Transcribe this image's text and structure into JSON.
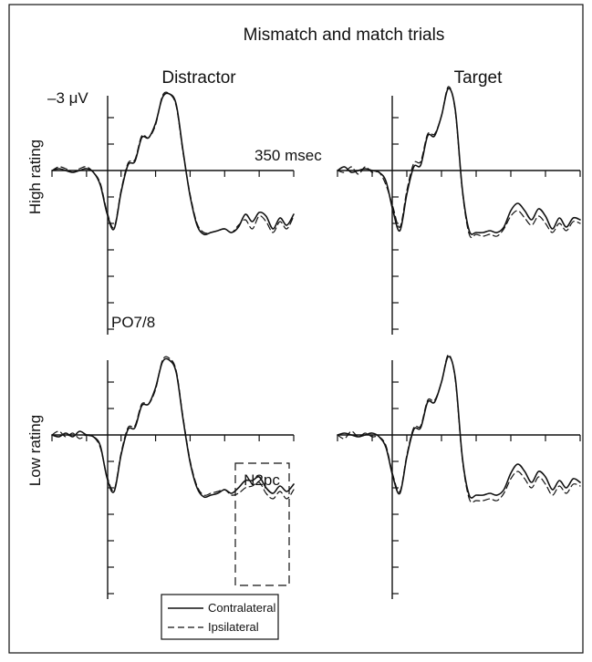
{
  "chart_data": {
    "type": "line",
    "title": "Mismatch and match trials",
    "columns": [
      "Distractor",
      "Target"
    ],
    "rows": [
      "High rating",
      "Low rating"
    ],
    "y_scale_label": "–3 μV",
    "y_axis_note": "negative up",
    "time_marker_label": "350 msec",
    "electrode_label": "PO7/8",
    "annotation": "N2pc",
    "legend": [
      "Contralateral",
      "Ipsilateral"
    ],
    "x_unit": "msec",
    "x": [
      -100,
      -80,
      -60,
      -40,
      -20,
      0,
      20,
      40,
      60,
      80,
      100,
      120,
      140,
      160,
      180,
      200,
      220,
      240,
      260,
      280,
      300,
      320,
      340,
      360,
      380,
      400,
      420,
      440,
      460,
      480,
      500,
      520,
      540,
      560,
      580,
      600
    ],
    "y_unit": "μV",
    "panels": [
      {
        "row": "High rating",
        "column": "Distractor",
        "series": [
          {
            "name": "Contralateral",
            "values": [
              0,
              -0.1,
              0,
              0.1,
              0,
              -0.1,
              0.1,
              0.8,
              2.4,
              3.2,
              1.2,
              -0.3,
              -0.5,
              -1.8,
              -1.8,
              -2.6,
              -4.0,
              -4.2,
              -3.6,
              -1.0,
              1.4,
              3.0,
              3.5,
              3.4,
              3.3,
              3.2,
              3.4,
              3.1,
              2.4,
              2.8,
              2.3,
              2.5,
              3.2,
              2.6,
              3.0,
              2.4
            ]
          },
          {
            "name": "Ipsilateral",
            "values": [
              0,
              -0.2,
              -0.1,
              0.1,
              -0.1,
              -0.2,
              0.1,
              0.7,
              2.3,
              3.1,
              1.1,
              -0.4,
              -0.6,
              -1.9,
              -1.8,
              -2.5,
              -4.1,
              -4.2,
              -3.5,
              -0.9,
              1.3,
              2.9,
              3.4,
              3.4,
              3.3,
              3.2,
              3.4,
              3.0,
              2.7,
              3.2,
              2.5,
              2.8,
              3.4,
              2.8,
              3.2,
              2.5
            ]
          }
        ]
      },
      {
        "row": "High rating",
        "column": "Target",
        "series": [
          {
            "name": "Contralateral",
            "values": [
              0,
              -0.2,
              0.1,
              0,
              -0.1,
              0,
              0.1,
              0.6,
              2.2,
              3.3,
              1.3,
              -0.2,
              -0.3,
              -1.9,
              -1.9,
              -3.0,
              -4.5,
              -3.3,
              1.0,
              3.3,
              3.4,
              3.4,
              3.3,
              3.4,
              3.1,
              2.2,
              1.8,
              2.2,
              2.7,
              2.1,
              2.5,
              3.2,
              2.6,
              3.1,
              2.6,
              2.7
            ]
          },
          {
            "name": "Ipsilateral",
            "values": [
              0,
              0.1,
              -0.2,
              0.2,
              -0.2,
              0.1,
              0.1,
              0.8,
              2.0,
              3.1,
              1.1,
              -0.4,
              -0.5,
              -2.0,
              -2.0,
              -3.0,
              -4.6,
              -3.2,
              1.1,
              3.5,
              3.5,
              3.6,
              3.5,
              3.6,
              3.2,
              2.5,
              2.2,
              2.6,
              3.0,
              2.5,
              2.9,
              3.4,
              2.9,
              3.3,
              2.8,
              2.9
            ]
          }
        ]
      },
      {
        "row": "Low rating",
        "column": "Distractor",
        "series": [
          {
            "name": "Contralateral",
            "values": [
              0,
              0.1,
              -0.1,
              0.1,
              -0.2,
              0,
              0.1,
              0.6,
              2.4,
              3.1,
              1.1,
              -0.3,
              -0.4,
              -1.6,
              -1.7,
              -2.6,
              -4.0,
              -4.1,
              -3.4,
              -0.8,
              1.5,
              2.9,
              3.4,
              3.3,
              3.2,
              3.0,
              3.2,
              2.9,
              2.5,
              2.5,
              2.3,
              2.9,
              3.2,
              2.8,
              3.1,
              2.7
            ]
          },
          {
            "name": "Ipsilateral",
            "values": [
              0,
              -0.2,
              0.1,
              -0.1,
              0.2,
              0,
              0.1,
              0.7,
              2.3,
              3.0,
              1.0,
              -0.4,
              -0.5,
              -1.7,
              -1.7,
              -2.5,
              -4.1,
              -4.2,
              -3.5,
              -0.9,
              1.4,
              2.8,
              3.3,
              3.2,
              3.1,
              3.0,
              3.3,
              3.2,
              2.9,
              2.8,
              2.6,
              3.2,
              3.5,
              3.1,
              3.5,
              3.0
            ]
          }
        ]
      },
      {
        "row": "Low rating",
        "column": "Target",
        "series": [
          {
            "name": "Contralateral",
            "values": [
              0,
              -0.1,
              0,
              0.1,
              0,
              -0.1,
              0.1,
              0.7,
              2.3,
              3.2,
              1.2,
              -0.3,
              -0.4,
              -1.8,
              -1.8,
              -2.9,
              -4.3,
              -3.1,
              1.2,
              3.3,
              3.3,
              3.3,
              3.2,
              3.3,
              3.0,
              2.1,
              1.6,
              2.0,
              2.6,
              2.0,
              2.3,
              3.0,
              2.5,
              2.9,
              2.4,
              2.6
            ]
          },
          {
            "name": "Ipsilateral",
            "values": [
              0,
              0.2,
              -0.2,
              0.1,
              -0.1,
              0.1,
              0.1,
              0.6,
              2.2,
              3.1,
              1.1,
              -0.4,
              -0.5,
              -1.9,
              -1.9,
              -2.9,
              -4.4,
              -3.0,
              1.3,
              3.5,
              3.6,
              3.6,
              3.5,
              3.6,
              3.2,
              2.4,
              2.0,
              2.4,
              2.9,
              2.3,
              2.7,
              3.3,
              2.8,
              3.2,
              2.7,
              2.8
            ]
          }
        ]
      }
    ]
  }
}
